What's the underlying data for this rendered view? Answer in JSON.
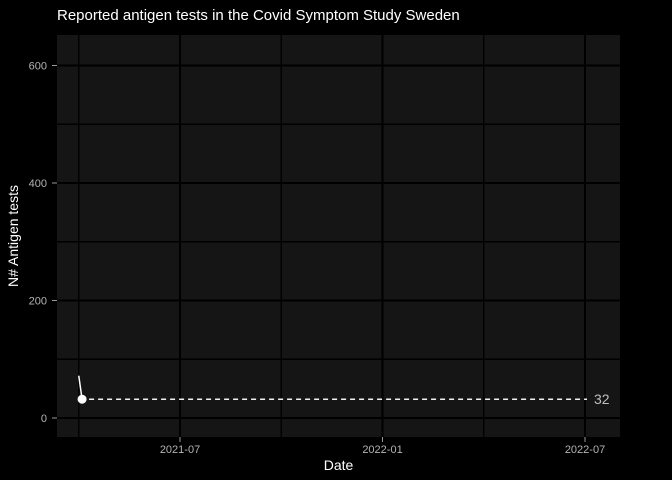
{
  "colors": {
    "background": "#000000",
    "panel": "#151515",
    "gridline": "#000000",
    "text_primary": "#ffffff",
    "tick_label": "#b3b3b3",
    "tick_mark": "#999999",
    "series": "#ffffff",
    "annotation_line": "#f0f0f0",
    "annotation_label": "#bebebe"
  },
  "chart_data": {
    "type": "line",
    "title": "Reported antigen tests in the Covid Symptom Study Sweden",
    "xlabel": "Date",
    "ylabel": "N# Antigen tests",
    "x_ticks": [
      {
        "label": "2021-07",
        "month": 6
      },
      {
        "label": "2022-01",
        "month": 12
      },
      {
        "label": "2022-07",
        "month": 18
      }
    ],
    "x_minor_months": [
      3,
      9,
      15
    ],
    "y_ticks": [
      {
        "label": "0",
        "value": 0
      },
      {
        "label": "200",
        "value": 200
      },
      {
        "label": "400",
        "value": 400
      },
      {
        "label": "600",
        "value": 600
      }
    ],
    "y_minor_values": [
      100,
      300,
      500
    ],
    "x_range": [
      "2021-03-15",
      "2022-08-01"
    ],
    "ylim": [
      -30,
      650
    ],
    "grid": true,
    "legend": "none",
    "series": [
      {
        "name": "antigen-tests",
        "points": [
          {
            "date": "2021-04-01",
            "value": 72
          },
          {
            "date": "2021-04-04",
            "value": 32
          }
        ]
      }
    ],
    "annotation": {
      "type": "dashed-hline",
      "value": 32,
      "label": "32"
    }
  }
}
